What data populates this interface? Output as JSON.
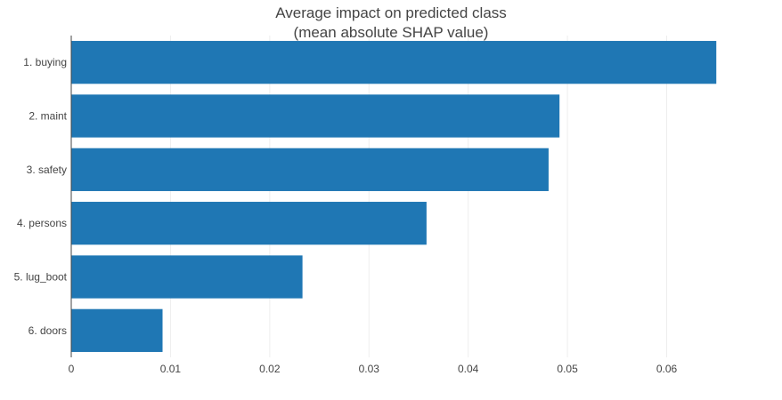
{
  "chart_data": {
    "type": "bar",
    "orientation": "horizontal",
    "title_lines": [
      "Average impact on predicted class",
      "(mean absolute SHAP value)"
    ],
    "categories": [
      "1. buying",
      "2. maint",
      "3. safety",
      "4. persons",
      "5. lug_boot",
      "6. doors"
    ],
    "values": [
      0.065,
      0.0492,
      0.0481,
      0.0358,
      0.0233,
      0.0092
    ],
    "x_ticks": [
      0,
      0.01,
      0.02,
      0.03,
      0.04,
      0.05,
      0.06
    ],
    "x_tick_labels": [
      "0",
      "0.01",
      "0.02",
      "0.03",
      "0.04",
      "0.05",
      "0.06"
    ],
    "xlim": [
      0,
      0.0718
    ],
    "xlabel": "",
    "ylabel": "",
    "grid": true,
    "legend": "none",
    "colors": {
      "bar": "#1f77b4",
      "grid": "#eeeeee",
      "axis": "#444444",
      "text": "#444444"
    }
  }
}
